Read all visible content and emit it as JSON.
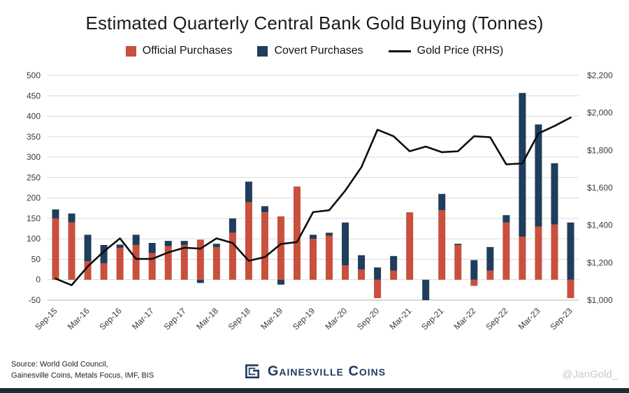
{
  "title": "Estimated Quarterly Central Bank Gold Buying (Tonnes)",
  "legend": {
    "official": "Official Purchases",
    "covert": "Covert Purchases",
    "gold_price": "Gold Price (RHS)"
  },
  "footer": {
    "source_line1": "Source: World Gold Council,",
    "source_line2": "Gainesville Coins, Metals Focus, IMF, BIS",
    "brand": "Gainesville Coins",
    "handle": "@JanGold_"
  },
  "colors": {
    "official": "#c8503c",
    "covert": "#1f3d5c",
    "line": "#0d0d0d",
    "grid": "#d9d9d9",
    "axis": "#b0b0b0",
    "accent_bar": "#1c2b39"
  },
  "chart_data": {
    "type": "bar",
    "subtype": "stacked-bars-with-line",
    "title": "Estimated Quarterly Central Bank Gold Buying (Tonnes)",
    "categories": [
      "Sep-15",
      "Dec-15",
      "Mar-16",
      "Jun-16",
      "Sep-16",
      "Dec-16",
      "Mar-17",
      "Jun-17",
      "Sep-17",
      "Dec-17",
      "Mar-18",
      "Jun-18",
      "Sep-18",
      "Dec-18",
      "Mar-19",
      "Jun-19",
      "Sep-19",
      "Dec-19",
      "Mar-20",
      "Jun-20",
      "Sep-20",
      "Dec-20",
      "Mar-21",
      "Jun-21",
      "Sep-21",
      "Dec-21",
      "Mar-22",
      "Jun-22",
      "Sep-22",
      "Dec-22",
      "Mar-23",
      "Jun-23",
      "Sep-23"
    ],
    "x_label_every": 2,
    "series": [
      {
        "name": "Official Purchases",
        "color": "#c8503c",
        "values": [
          150,
          140,
          45,
          40,
          78,
          85,
          65,
          82,
          85,
          98,
          80,
          115,
          190,
          165,
          155,
          228,
          100,
          108,
          35,
          25,
          -45,
          22,
          165,
          0,
          170,
          85,
          -15,
          22,
          140,
          105,
          130,
          135,
          -45
        ]
      },
      {
        "name": "Covert Purchases",
        "color": "#1f3d5c",
        "values": [
          22,
          22,
          65,
          45,
          8,
          25,
          25,
          13,
          10,
          -8,
          8,
          35,
          50,
          15,
          -12,
          0,
          10,
          7,
          105,
          35,
          30,
          36,
          0,
          -50,
          40,
          3,
          48,
          58,
          18,
          352,
          250,
          150,
          140
        ]
      }
    ],
    "line": {
      "name": "Gold Price (RHS)",
      "color": "#0d0d0d",
      "axis": "right",
      "values": [
        1115,
        1080,
        1180,
        1260,
        1330,
        1220,
        1220,
        1255,
        1280,
        1275,
        1330,
        1305,
        1210,
        1230,
        1300,
        1310,
        1470,
        1480,
        1585,
        1710,
        1910,
        1875,
        1795,
        1820,
        1790,
        1795,
        1875,
        1870,
        1725,
        1730,
        1890,
        1930,
        1975
      ]
    },
    "left_axis": {
      "min": -50,
      "max": 500,
      "step": 50
    },
    "right_axis": {
      "min": 1000,
      "max": 2200,
      "step": 200,
      "prefix": "$"
    },
    "grid": true,
    "legend_position": "top"
  }
}
